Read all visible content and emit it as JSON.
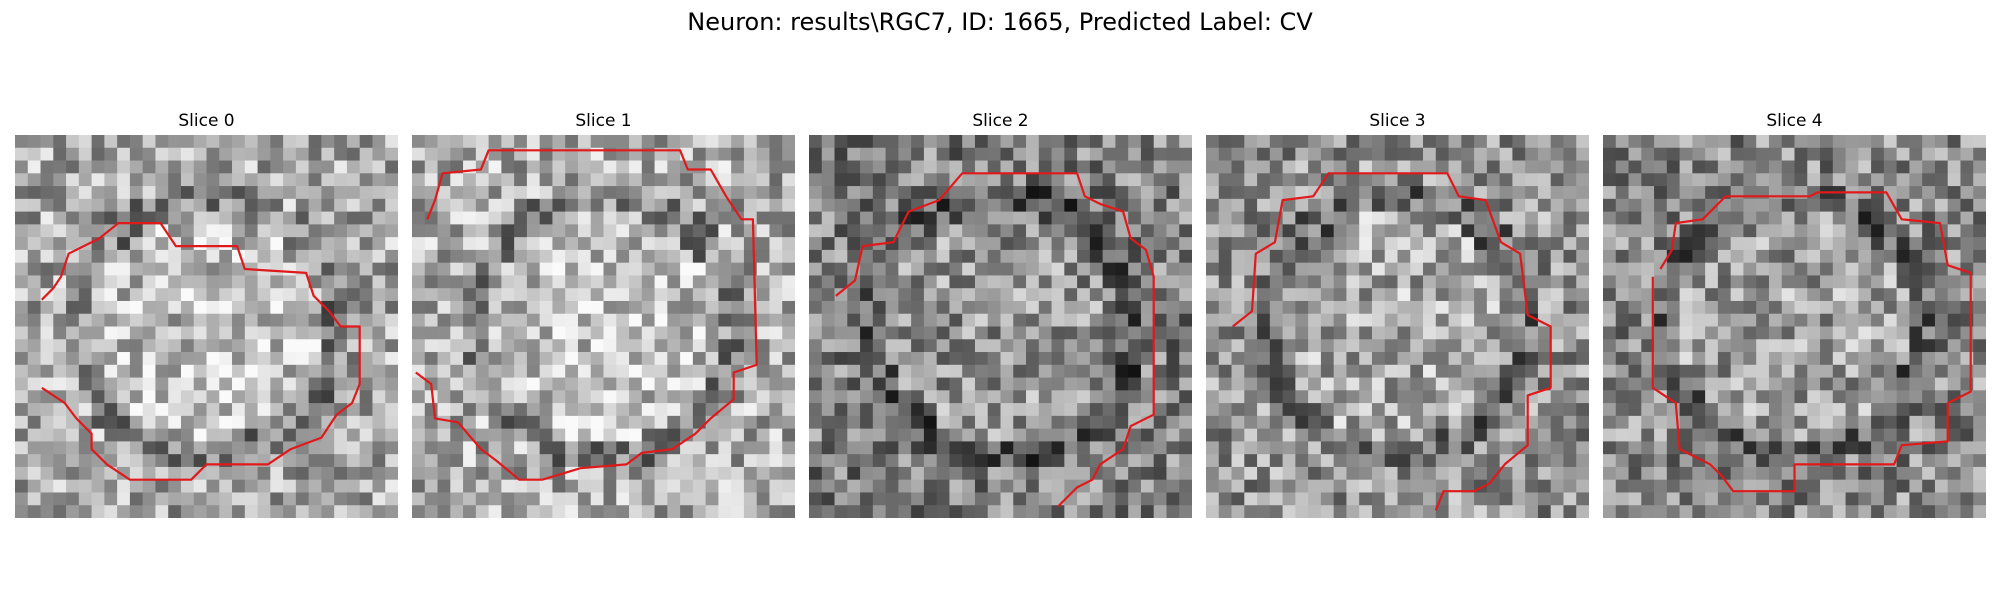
{
  "figure": {
    "title": "Neuron: results\\RGC7, ID: 1665, Predicted Label: CV"
  },
  "panels": [
    {
      "title": "Slice 0",
      "seed": 11,
      "bright": 0.62,
      "contour": [
        [
          0.07,
          0.43
        ],
        [
          0.1,
          0.4
        ],
        [
          0.12,
          0.37
        ],
        [
          0.14,
          0.31
        ],
        [
          0.22,
          0.27
        ],
        [
          0.27,
          0.23
        ],
        [
          0.38,
          0.23
        ],
        [
          0.42,
          0.29
        ],
        [
          0.58,
          0.29
        ],
        [
          0.6,
          0.35
        ],
        [
          0.76,
          0.36
        ],
        [
          0.78,
          0.42
        ],
        [
          0.82,
          0.46
        ],
        [
          0.85,
          0.5
        ],
        [
          0.9,
          0.5
        ],
        [
          0.9,
          0.65
        ],
        [
          0.88,
          0.7
        ],
        [
          0.84,
          0.73
        ],
        [
          0.8,
          0.79
        ],
        [
          0.72,
          0.82
        ],
        [
          0.66,
          0.86
        ],
        [
          0.5,
          0.86
        ],
        [
          0.46,
          0.9
        ],
        [
          0.3,
          0.9
        ],
        [
          0.24,
          0.86
        ],
        [
          0.2,
          0.82
        ],
        [
          0.2,
          0.78
        ],
        [
          0.16,
          0.74
        ],
        [
          0.13,
          0.7
        ],
        [
          0.07,
          0.66
        ]
      ]
    },
    {
      "title": "Slice 1",
      "seed": 23,
      "bright": 0.64,
      "contour": [
        [
          0.04,
          0.22
        ],
        [
          0.06,
          0.17
        ],
        [
          0.08,
          0.1
        ],
        [
          0.18,
          0.09
        ],
        [
          0.2,
          0.04
        ],
        [
          0.7,
          0.04
        ],
        [
          0.72,
          0.09
        ],
        [
          0.78,
          0.09
        ],
        [
          0.82,
          0.16
        ],
        [
          0.86,
          0.22
        ],
        [
          0.89,
          0.22
        ],
        [
          0.9,
          0.6
        ],
        [
          0.84,
          0.62
        ],
        [
          0.84,
          0.69
        ],
        [
          0.78,
          0.74
        ],
        [
          0.74,
          0.78
        ],
        [
          0.68,
          0.82
        ],
        [
          0.6,
          0.83
        ],
        [
          0.56,
          0.86
        ],
        [
          0.44,
          0.87
        ],
        [
          0.34,
          0.9
        ],
        [
          0.28,
          0.9
        ],
        [
          0.22,
          0.85
        ],
        [
          0.18,
          0.82
        ],
        [
          0.12,
          0.75
        ],
        [
          0.06,
          0.74
        ],
        [
          0.05,
          0.65
        ],
        [
          0.01,
          0.62
        ]
      ]
    },
    {
      "title": "Slice 2",
      "seed": 37,
      "bright": 0.46,
      "contour": [
        [
          0.07,
          0.42
        ],
        [
          0.12,
          0.38
        ],
        [
          0.14,
          0.29
        ],
        [
          0.22,
          0.28
        ],
        [
          0.26,
          0.2
        ],
        [
          0.34,
          0.17
        ],
        [
          0.4,
          0.1
        ],
        [
          0.7,
          0.1
        ],
        [
          0.72,
          0.16
        ],
        [
          0.76,
          0.18
        ],
        [
          0.82,
          0.2
        ],
        [
          0.84,
          0.27
        ],
        [
          0.88,
          0.3
        ],
        [
          0.9,
          0.37
        ],
        [
          0.9,
          0.73
        ],
        [
          0.84,
          0.76
        ],
        [
          0.82,
          0.82
        ],
        [
          0.76,
          0.86
        ],
        [
          0.74,
          0.9
        ],
        [
          0.7,
          0.92
        ],
        [
          0.65,
          0.97
        ]
      ]
    },
    {
      "title": "Slice 3",
      "seed": 53,
      "bright": 0.54,
      "contour": [
        [
          0.07,
          0.5
        ],
        [
          0.12,
          0.46
        ],
        [
          0.13,
          0.31
        ],
        [
          0.18,
          0.28
        ],
        [
          0.2,
          0.17
        ],
        [
          0.28,
          0.16
        ],
        [
          0.32,
          0.1
        ],
        [
          0.63,
          0.1
        ],
        [
          0.66,
          0.16
        ],
        [
          0.73,
          0.17
        ],
        [
          0.77,
          0.28
        ],
        [
          0.82,
          0.31
        ],
        [
          0.84,
          0.47
        ],
        [
          0.9,
          0.5
        ],
        [
          0.9,
          0.66
        ],
        [
          0.84,
          0.68
        ],
        [
          0.84,
          0.81
        ],
        [
          0.78,
          0.86
        ],
        [
          0.74,
          0.91
        ],
        [
          0.7,
          0.93
        ],
        [
          0.62,
          0.93
        ],
        [
          0.6,
          0.98
        ]
      ]
    },
    {
      "title": "Slice 4",
      "seed": 71,
      "bright": 0.5,
      "contour": [
        [
          0.15,
          0.35
        ],
        [
          0.18,
          0.3
        ],
        [
          0.19,
          0.23
        ],
        [
          0.26,
          0.22
        ],
        [
          0.32,
          0.16
        ],
        [
          0.54,
          0.16
        ],
        [
          0.56,
          0.15
        ],
        [
          0.74,
          0.15
        ],
        [
          0.78,
          0.22
        ],
        [
          0.88,
          0.23
        ],
        [
          0.9,
          0.34
        ],
        [
          0.96,
          0.36
        ],
        [
          0.96,
          0.67
        ],
        [
          0.9,
          0.7
        ],
        [
          0.9,
          0.8
        ],
        [
          0.78,
          0.81
        ],
        [
          0.76,
          0.86
        ],
        [
          0.5,
          0.86
        ],
        [
          0.5,
          0.93
        ],
        [
          0.34,
          0.93
        ],
        [
          0.31,
          0.89
        ],
        [
          0.28,
          0.86
        ],
        [
          0.2,
          0.82
        ],
        [
          0.19,
          0.7
        ],
        [
          0.13,
          0.66
        ],
        [
          0.13,
          0.37
        ]
      ]
    }
  ]
}
